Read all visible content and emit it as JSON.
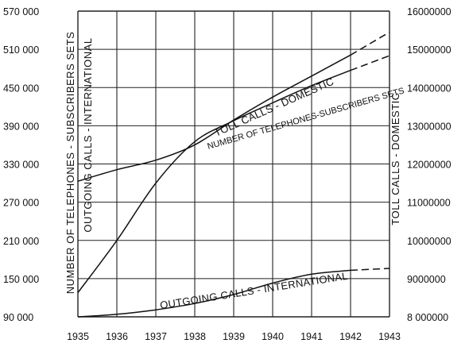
{
  "chart_data": {
    "type": "line",
    "x": [
      1935,
      1936,
      1937,
      1938,
      1939,
      1940,
      1941,
      1942,
      1943
    ],
    "xticks": [
      "1935",
      "1936",
      "1937",
      "1938",
      "1939",
      "1940",
      "1941",
      "1942",
      "1943"
    ],
    "left_axis": {
      "label": "NUMBER OF TELEPHONES - SUBSCRIBERS SETS",
      "secondary_label": "OUTGOING CALLS - INTERNATIONAL",
      "ticks": [
        "90 000",
        "150 000",
        "210 000",
        "270 000",
        "330 000",
        "390 000",
        "450 000",
        "510 000",
        "570 000"
      ],
      "ylim": [
        90000,
        570000
      ]
    },
    "right_axis": {
      "label": "TOLL CALLS - DOMESTIC",
      "ticks": [
        "8 000000",
        "9000000",
        "10000000",
        "11000000",
        "12000000",
        "13000000",
        "14000000",
        "15000000",
        "16000000"
      ],
      "ylim": [
        8000000,
        16000000
      ]
    },
    "series": [
      {
        "name": "TOLL CALLS - DOMESTIC",
        "axis": "right",
        "x": [
          1935,
          1936,
          1937,
          1938,
          1939,
          1940,
          1941,
          1942,
          1943
        ],
        "values": [
          11550000,
          11850000,
          12100000,
          12500000,
          13150000,
          13750000,
          14300000,
          14850000,
          15450000
        ],
        "projected_from": 1942
      },
      {
        "name": "NUMBER OF TELEPHONES - SUBSCRIBERS SETS",
        "axis": "left",
        "x": [
          1935,
          1936,
          1937,
          1938,
          1939,
          1940,
          1941,
          1942,
          1943
        ],
        "values": [
          128000,
          210000,
          300000,
          365000,
          398000,
          426000,
          453000,
          477000,
          500000
        ],
        "projected_from": 1942
      },
      {
        "name": "OUTGOING CALLS - INTERNATIONAL",
        "axis": "left",
        "x": [
          1935,
          1936,
          1937,
          1938,
          1939,
          1940,
          1941,
          1942,
          1943
        ],
        "values": [
          90000,
          94000,
          101000,
          111000,
          125000,
          143000,
          157000,
          163000,
          166000
        ],
        "projected_from": 1942
      }
    ],
    "annotations": {
      "toll": "TOLL CALLS - DOMESTIC",
      "phones": "NUMBER OF TELEPHONES-SUBSCRIBERS SETS",
      "outgoing": "OUTGOING CALLS - INTERNATIONAL"
    },
    "grid": true
  }
}
